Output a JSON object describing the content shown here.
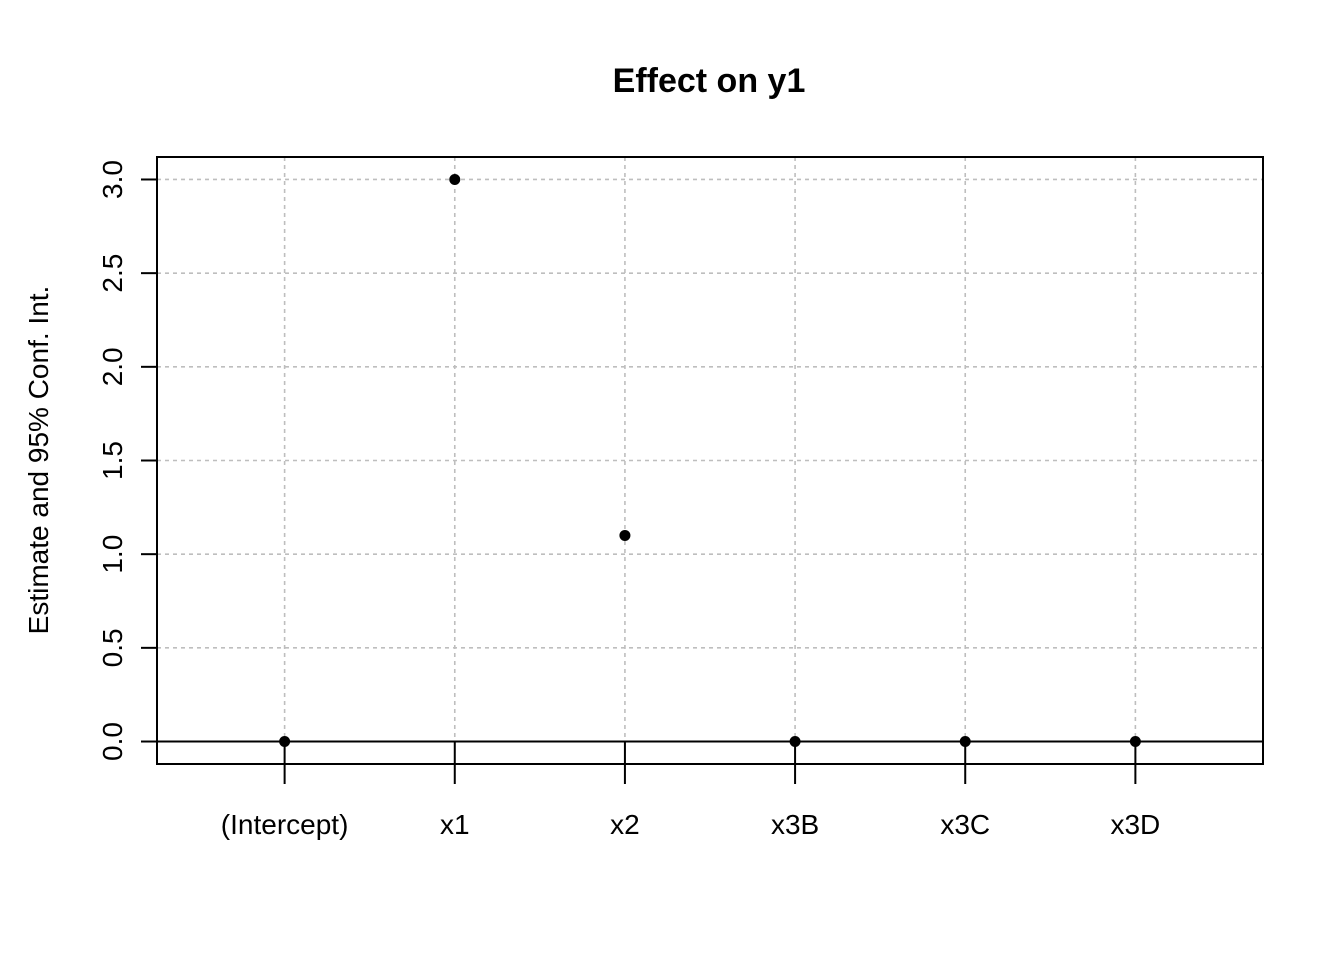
{
  "chart_data": {
    "type": "scatter",
    "title": "Effect on y1",
    "xlabel": "",
    "ylabel": "Estimate and 95% Conf. Int.",
    "categories": [
      "(Intercept)",
      "x1",
      "x2",
      "x3B",
      "x3C",
      "x3D"
    ],
    "values": [
      0.0,
      3.0,
      1.1,
      0.0,
      0.0,
      0.0
    ],
    "y_ticks": [
      "0.0",
      "0.5",
      "1.0",
      "1.5",
      "2.0",
      "2.5",
      "3.0"
    ],
    "ylim": [
      -0.12,
      3.12
    ],
    "grid": true,
    "reference_line": 0,
    "legend": "none",
    "colors": {
      "points": "#000000",
      "grid": "#bebebe",
      "axis": "#000000"
    }
  }
}
